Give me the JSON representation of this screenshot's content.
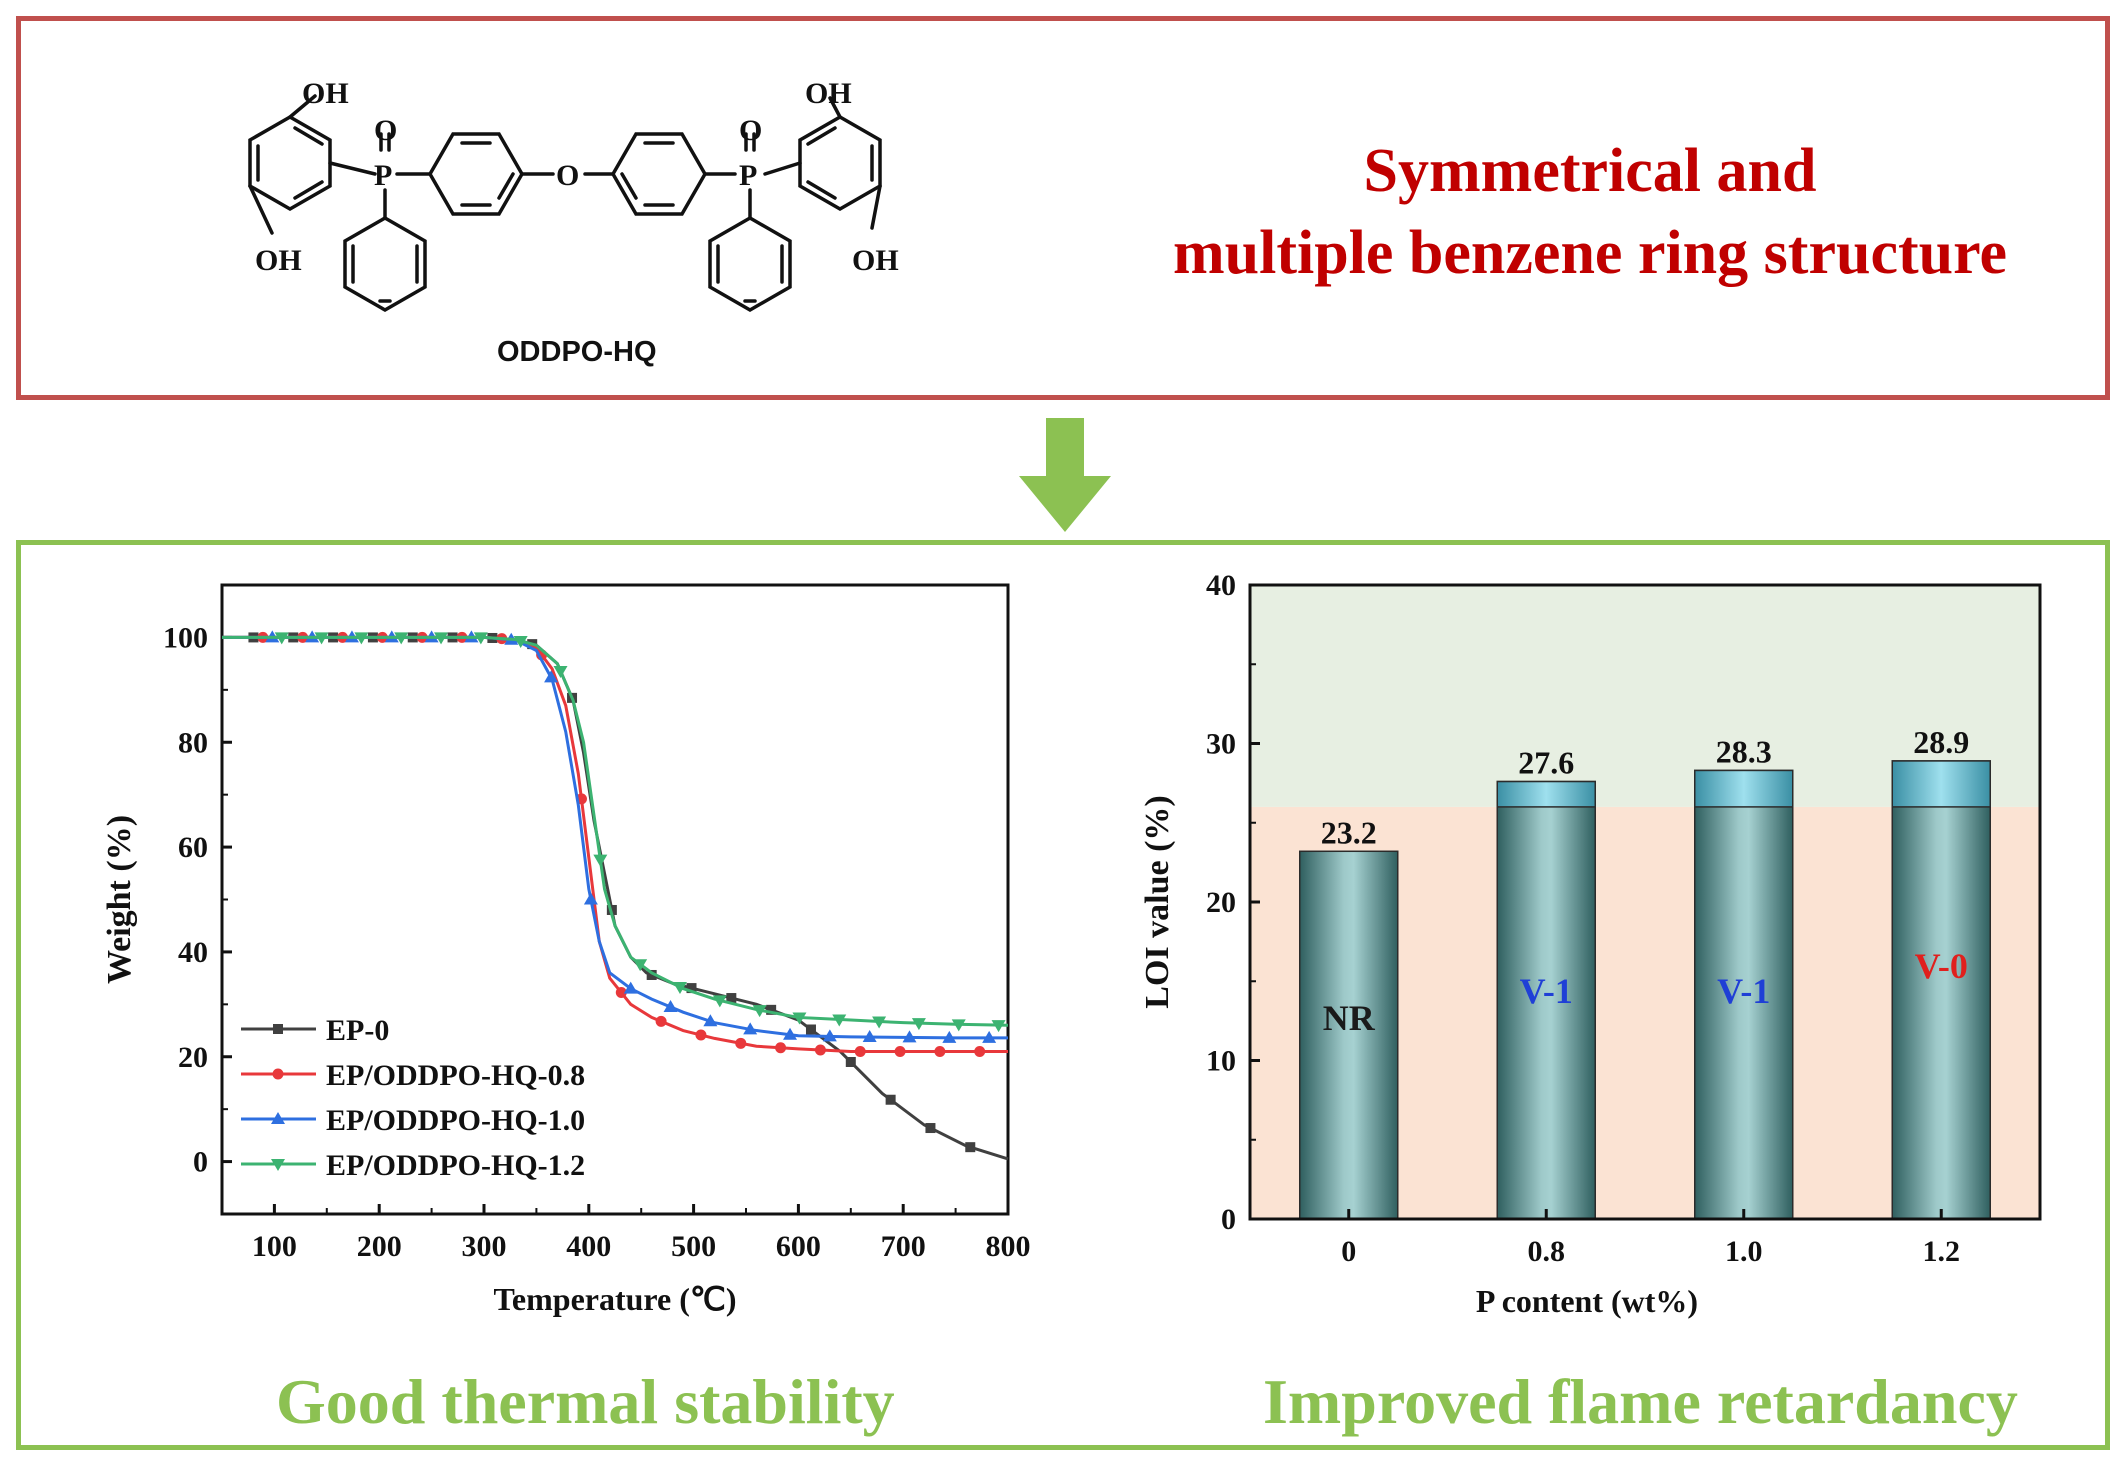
{
  "structure": {
    "compound_name": "ODDPO-HQ",
    "atoms": {
      "oh": "OH",
      "p": "P",
      "o": "O"
    },
    "headline_line1": "Symmetrical and",
    "headline_line2": "multiple benzene ring structure"
  },
  "captions": {
    "left": "Good thermal stability",
    "right": "Improved flame retardancy"
  },
  "colors": {
    "top_border": "#c0504d",
    "bottom_border": "#8cc152",
    "arrow": "#8cc152",
    "headline": "#c00000",
    "caption": "#8cc152"
  },
  "chart_data": [
    {
      "type": "line",
      "xlabel": "Temperature (℃)",
      "ylabel": "Weight (%)",
      "xlim": [
        50,
        800
      ],
      "ylim": [
        -10,
        110
      ],
      "xticks": [
        100,
        200,
        300,
        400,
        500,
        600,
        700,
        800
      ],
      "yticks": [
        0,
        20,
        40,
        60,
        80,
        100
      ],
      "legend_position": "lower-left",
      "grid": false,
      "series": [
        {
          "name": "EP-0",
          "color": "#404040",
          "marker": "square",
          "x": [
            50,
            100,
            150,
            200,
            250,
            300,
            330,
            350,
            370,
            385,
            395,
            405,
            415,
            425,
            440,
            455,
            480,
            520,
            560,
            600,
            640,
            680,
            720,
            760,
            800
          ],
          "y": [
            100,
            100,
            100,
            100,
            100,
            100,
            99.6,
            98.5,
            95,
            88,
            78,
            65,
            55,
            45,
            39,
            36,
            34,
            32,
            30,
            27,
            21,
            13,
            7,
            3,
            0.5
          ]
        },
        {
          "name": "EP/ODDPO-HQ-0.8",
          "color": "#e8383b",
          "marker": "circle",
          "x": [
            50,
            100,
            150,
            200,
            250,
            300,
            330,
            350,
            365,
            378,
            390,
            400,
            410,
            420,
            440,
            460,
            490,
            520,
            560,
            600,
            650,
            700,
            750,
            800
          ],
          "y": [
            100,
            100,
            100,
            100,
            100,
            100,
            99.6,
            98,
            94,
            87,
            74,
            58,
            42,
            35,
            30,
            27.5,
            25,
            23.5,
            22,
            21.5,
            21,
            21,
            21,
            21
          ]
        },
        {
          "name": "EP/ODDPO-HQ-1.0",
          "color": "#2e6fe0",
          "marker": "triangle-up",
          "x": [
            50,
            100,
            150,
            200,
            250,
            300,
            330,
            350,
            365,
            378,
            390,
            400,
            410,
            420,
            440,
            460,
            490,
            520,
            560,
            600,
            650,
            700,
            750,
            800
          ],
          "y": [
            100,
            100,
            100,
            100,
            100,
            100,
            99.5,
            97.5,
            92,
            82,
            68,
            52,
            42,
            36,
            33,
            31,
            28.5,
            26.5,
            25,
            24,
            23.8,
            23.7,
            23.6,
            23.6
          ]
        },
        {
          "name": "EP/ODDPO-HQ-1.2",
          "color": "#3cb371",
          "marker": "triangle-down",
          "x": [
            50,
            100,
            150,
            200,
            250,
            300,
            330,
            350,
            370,
            385,
            395,
            405,
            415,
            425,
            440,
            460,
            490,
            520,
            560,
            600,
            650,
            700,
            750,
            800
          ],
          "y": [
            100,
            100,
            100,
            100,
            100,
            100,
            99.6,
            98.5,
            95,
            88,
            80,
            66,
            52,
            45,
            39,
            36,
            33,
            31,
            29,
            27.5,
            27,
            26.5,
            26.2,
            26
          ]
        }
      ]
    },
    {
      "type": "bar",
      "xlabel": "P content (wt%)",
      "ylabel": "LOI value (%)",
      "ylim": [
        0,
        40
      ],
      "yticks": [
        0,
        10,
        20,
        30,
        40
      ],
      "categories": [
        "0",
        "0.8",
        "1.0",
        "1.2"
      ],
      "values": [
        23.2,
        27.6,
        28.3,
        28.9
      ],
      "value_labels": [
        "23.2",
        "27.6",
        "28.3",
        "28.9"
      ],
      "inner_labels": [
        "NR",
        "V-1",
        "V-1",
        "V-0"
      ],
      "inner_label_colors": [
        "#1a1a1a",
        "#1f3fd6",
        "#1f3fd6",
        "#e0201d"
      ],
      "background_bands": [
        {
          "from": 0,
          "to": 26,
          "color": "#fbe3d3"
        },
        {
          "from": 26,
          "to": 40,
          "color": "#e7efe2"
        }
      ]
    }
  ]
}
